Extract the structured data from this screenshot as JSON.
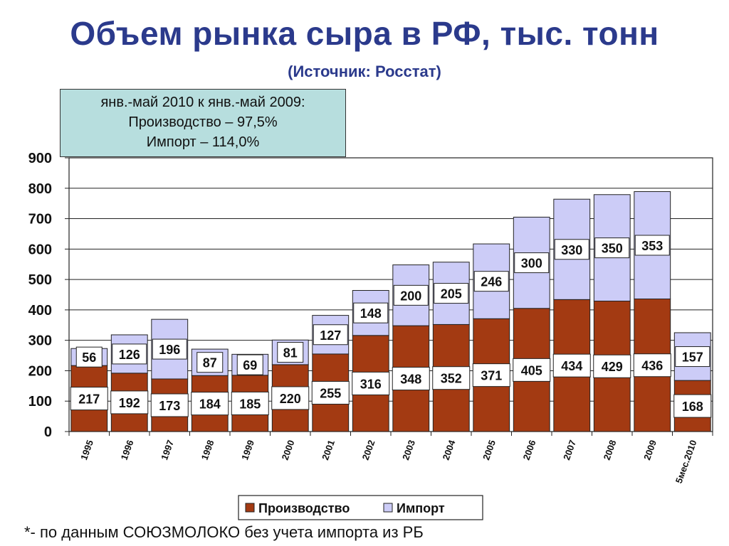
{
  "title": "Объем рынка сыра в РФ, тыс. тонн",
  "subtitle": "(Источник: Росстат)",
  "note": {
    "line1": "янв.-май 2010 к янв.-май 2009:",
    "line2": "Производство – 97,5%",
    "line3": "Импорт – 114,0%"
  },
  "footnote": "*- по данным СОЮЗМОЛОКО без учета импорта из РБ",
  "colors": {
    "production": "#a33a12",
    "import": "#ccccf7",
    "title": "#2b3a8c",
    "note_bg": "#b7dede"
  },
  "chart_data": {
    "type": "bar",
    "stacked": true,
    "categories": [
      "1995",
      "1996",
      "1997",
      "1998",
      "1999",
      "2000",
      "2001",
      "2002",
      "2003",
      "2004",
      "2005",
      "2006",
      "2007",
      "2008",
      "2009",
      "5мес.2010"
    ],
    "series": [
      {
        "name": "Производство",
        "values": [
          217,
          192,
          173,
          184,
          185,
          220,
          255,
          316,
          348,
          352,
          371,
          405,
          434,
          429,
          436,
          168
        ]
      },
      {
        "name": "Импорт",
        "values": [
          56,
          126,
          196,
          87,
          69,
          81,
          127,
          148,
          200,
          205,
          246,
          300,
          330,
          350,
          353,
          157
        ]
      }
    ],
    "ylim": [
      0,
      900
    ],
    "yticks": [
      0,
      100,
      200,
      300,
      400,
      500,
      600,
      700,
      800,
      900
    ],
    "grid": true,
    "legend": "bottom-center"
  }
}
